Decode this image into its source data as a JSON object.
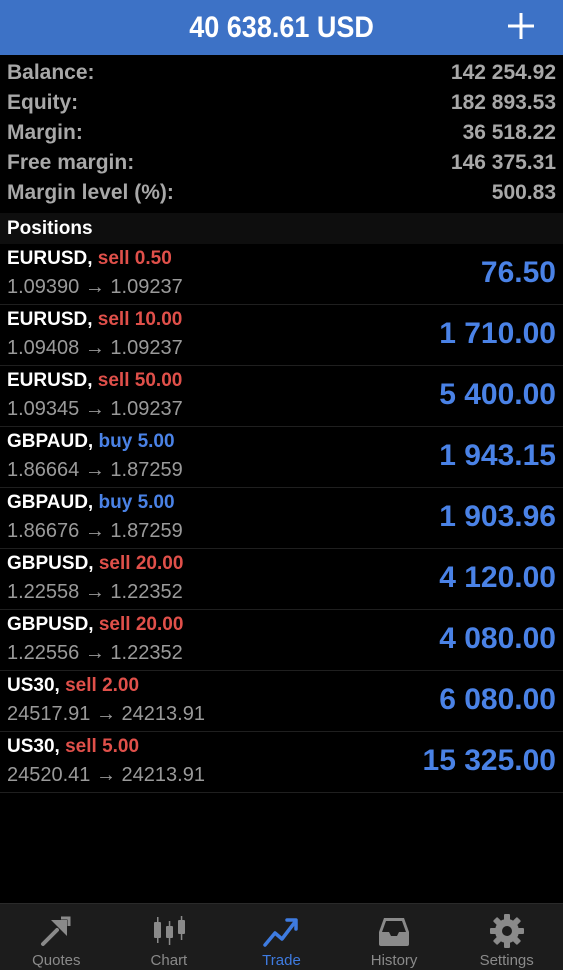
{
  "header": {
    "title": "40 638.61 USD"
  },
  "summary": [
    {
      "label": "Balance:",
      "value": "142 254.92"
    },
    {
      "label": "Equity:",
      "value": "182 893.53"
    },
    {
      "label": "Margin:",
      "value": "36 518.22"
    },
    {
      "label": "Free margin:",
      "value": "146 375.31"
    },
    {
      "label": "Margin level (%):",
      "value": "500.83"
    }
  ],
  "positions_header": "Positions",
  "positions": [
    {
      "symbol": "EURUSD,",
      "type": "sell",
      "lots": "0.50",
      "open": "1.09390",
      "current": "1.09237",
      "profit": "76.50"
    },
    {
      "symbol": "EURUSD,",
      "type": "sell",
      "lots": "10.00",
      "open": "1.09408",
      "current": "1.09237",
      "profit": "1 710.00"
    },
    {
      "symbol": "EURUSD,",
      "type": "sell",
      "lots": "50.00",
      "open": "1.09345",
      "current": "1.09237",
      "profit": "5 400.00"
    },
    {
      "symbol": "GBPAUD,",
      "type": "buy",
      "lots": "5.00",
      "open": "1.86664",
      "current": "1.87259",
      "profit": "1 943.15"
    },
    {
      "symbol": "GBPAUD,",
      "type": "buy",
      "lots": "5.00",
      "open": "1.86676",
      "current": "1.87259",
      "profit": "1 903.96"
    },
    {
      "symbol": "GBPUSD,",
      "type": "sell",
      "lots": "20.00",
      "open": "1.22558",
      "current": "1.22352",
      "profit": "4 120.00"
    },
    {
      "symbol": "GBPUSD,",
      "type": "sell",
      "lots": "20.00",
      "open": "1.22556",
      "current": "1.22352",
      "profit": "4 080.00"
    },
    {
      "symbol": "US30,",
      "type": "sell",
      "lots": "2.00",
      "open": "24517.91",
      "current": "24213.91",
      "profit": "6 080.00"
    },
    {
      "symbol": "US30,",
      "type": "sell",
      "lots": "5.00",
      "open": "24520.41",
      "current": "24213.91",
      "profit": "15 325.00"
    }
  ],
  "arrow": "→",
  "tabs": [
    {
      "label": "Quotes",
      "icon": "quotes-icon",
      "active": false
    },
    {
      "label": "Chart",
      "icon": "candlestick-icon",
      "active": false
    },
    {
      "label": "Trade",
      "icon": "trend-line-icon",
      "active": true
    },
    {
      "label": "History",
      "icon": "inbox-icon",
      "active": false
    },
    {
      "label": "Settings",
      "icon": "gear-icon",
      "active": false
    }
  ],
  "colors": {
    "header": "#3d72c6",
    "sell": "#e0504a",
    "buy": "#4a82e6",
    "profit": "#4a82e6",
    "tab_active": "#3e7be0",
    "tab_inactive": "#8a8a8a"
  }
}
